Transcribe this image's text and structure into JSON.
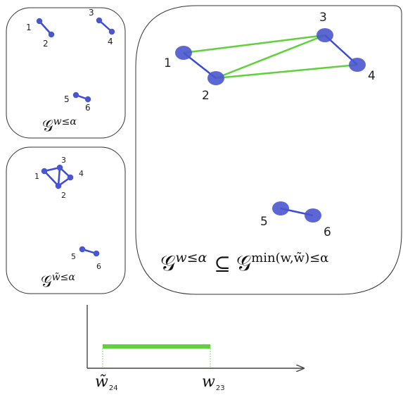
{
  "colors": {
    "node": "#4a56cf",
    "blue_edge": "#3b4bd4",
    "green_edge": "#5fd13a",
    "panel_border": "#333333",
    "interval_bar": "#5fd13a"
  },
  "panels": {
    "top_left": {
      "node_labels": [
        "1",
        "2",
        "3",
        "4",
        "5",
        "6"
      ],
      "caption": {
        "symbol": "𝒢",
        "superscript": "w≤α"
      }
    },
    "mid_left": {
      "node_labels": [
        "1",
        "2",
        "3",
        "4",
        "5",
        "6"
      ],
      "caption": {
        "symbol": "𝒢",
        "superscript": "w̃≤α"
      }
    },
    "right": {
      "node_labels": [
        "1",
        "2",
        "3",
        "4",
        "5",
        "6"
      ],
      "caption": {
        "lhs_symbol": "𝒢",
        "lhs_superscript": "w≤α",
        "relation": "⊆",
        "rhs_symbol": "𝒢",
        "rhs_superscript": "min(w,w̃)≤α"
      }
    }
  },
  "axis": {
    "tick_left": {
      "base": "w̃",
      "subscript": "24"
    },
    "tick_right": {
      "base": "w",
      "subscript": "23"
    }
  }
}
